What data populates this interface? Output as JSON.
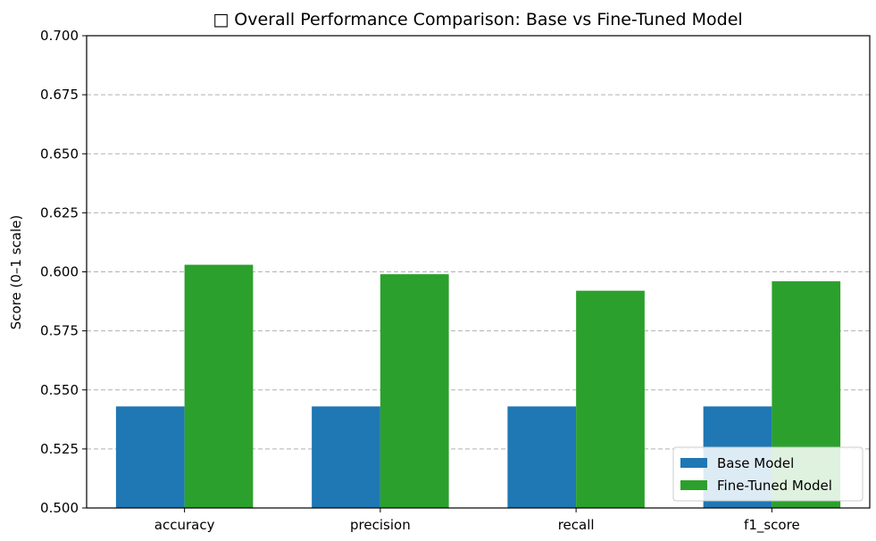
{
  "chart_data": {
    "type": "bar",
    "title": "□ Overall Performance Comparison: Base vs Fine-Tuned Model",
    "xlabel": "",
    "ylabel": "Score (0–1 scale)",
    "ylim": [
      0.5,
      0.7
    ],
    "yticks": [
      0.5,
      0.525,
      0.55,
      0.575,
      0.6,
      0.625,
      0.65,
      0.675,
      0.7
    ],
    "ytick_labels": [
      "0.500",
      "0.525",
      "0.550",
      "0.575",
      "0.600",
      "0.625",
      "0.650",
      "0.675",
      "0.700"
    ],
    "categories": [
      "accuracy",
      "precision",
      "recall",
      "f1_score"
    ],
    "series": [
      {
        "name": "Base Model",
        "color": "#1f77b4",
        "values": [
          0.543,
          0.543,
          0.543,
          0.543
        ]
      },
      {
        "name": "Fine-Tuned Model",
        "color": "#2ca02c",
        "values": [
          0.603,
          0.599,
          0.592,
          0.596
        ]
      }
    ],
    "grid": "y-dashed",
    "legend_position": "bottom-right"
  }
}
